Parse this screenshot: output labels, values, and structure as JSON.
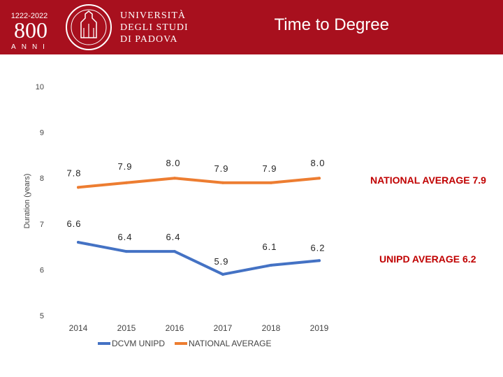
{
  "header": {
    "logo_years": "1222-2022",
    "logo_number": "800",
    "logo_word": "ANNI",
    "university_lines": [
      "UNIVERSITÀ",
      "DEGLI STUDI",
      "DI PADOVA"
    ],
    "title": "Time to Degree"
  },
  "colors": {
    "header_bg": "#a8101e",
    "unipd_series": "#4472c4",
    "national_series": "#ed7d31",
    "annotation_national": "#c00000",
    "annotation_unipd": "#c00000"
  },
  "chart_data": {
    "type": "line",
    "title": "",
    "xlabel": "",
    "ylabel": "Duration (years)",
    "ylim": [
      5,
      10
    ],
    "yticks": [
      "5",
      "6",
      "7",
      "8",
      "9",
      "10"
    ],
    "categories": [
      "2014",
      "2015",
      "2016",
      "2017",
      "2018",
      "2019"
    ],
    "series": [
      {
        "name": "DCVM UNIPD",
        "values": [
          6.6,
          6.4,
          6.4,
          5.9,
          6.1,
          6.2
        ],
        "labels": [
          "6.6",
          "6.4",
          "6.4",
          "5.9",
          "6.1",
          "6.2"
        ]
      },
      {
        "name": "NATIONAL AVERAGE",
        "values": [
          7.8,
          7.9,
          8.0,
          7.9,
          7.9,
          8.0
        ],
        "labels": [
          "7.8",
          "7.9",
          "8.0",
          "7.9",
          "7.9",
          "8.0"
        ]
      }
    ],
    "grid": false,
    "legend_position": "bottom",
    "annotations": [
      "NATIONAL AVERAGE 7.9",
      "UNIPD AVERAGE 6.2"
    ]
  }
}
